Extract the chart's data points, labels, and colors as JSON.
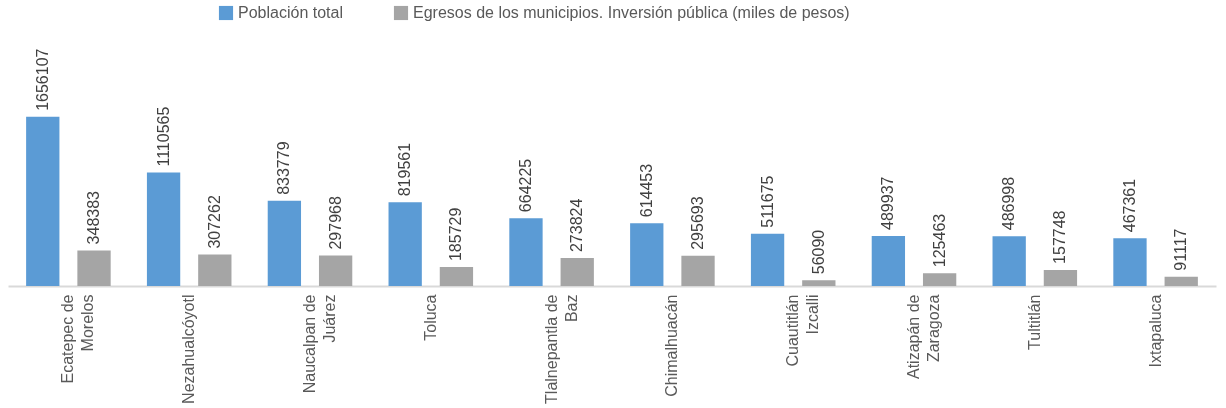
{
  "chart_data": {
    "type": "bar",
    "categories": [
      "Ecatepec de Morelos",
      "Nezahualcóyotl",
      "Naucalpan de Juárez",
      "Toluca",
      "Tlalnepantla de Baz",
      "Chimalhuacán",
      "Cuautitlán Izcalli",
      "Atizapán de Zaragoza",
      "Tultitlán",
      "Ixtapaluca"
    ],
    "series": [
      {
        "name": "Población total",
        "color": "#5b9bd5",
        "values": [
          1656107,
          1110565,
          833779,
          819561,
          664225,
          614453,
          511675,
          489937,
          486998,
          467361
        ]
      },
      {
        "name": "Egresos de los municipios. Inversión pública (miles de pesos)",
        "color": "#a5a5a5",
        "values": [
          348383,
          307262,
          297968,
          185729,
          273824,
          295693,
          56090,
          125463,
          157748,
          91117
        ]
      }
    ],
    "data_labels": true,
    "legend": "top",
    "grid": false
  }
}
